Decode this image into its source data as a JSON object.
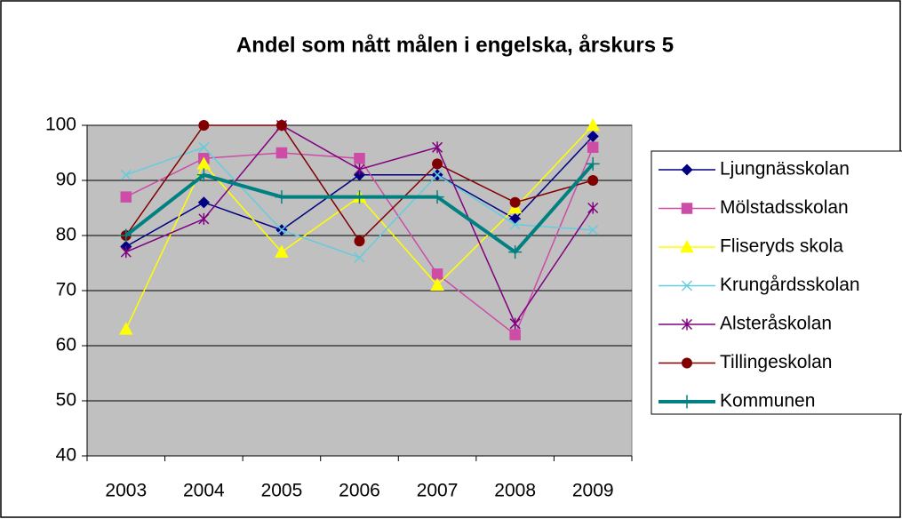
{
  "chart_data": {
    "type": "line",
    "title": "Andel som nått målen i engelska, årskurs 5",
    "categories": [
      "2003",
      "2004",
      "2005",
      "2006",
      "2007",
      "2008",
      "2009"
    ],
    "series": [
      {
        "name": "Ljungnässkolan",
        "color": "#000080",
        "marker": "diamond",
        "values": [
          78,
          86,
          81,
          91,
          91,
          83,
          98
        ]
      },
      {
        "name": "Mölstadsskolan",
        "color": "#cc4ca6",
        "marker": "square",
        "values": [
          87,
          94,
          95,
          94,
          73,
          62,
          96
        ]
      },
      {
        "name": "Fliseryds skola",
        "color": "#ffff00",
        "marker": "triangle",
        "values": [
          63,
          93,
          77,
          87,
          71,
          85,
          100
        ]
      },
      {
        "name": "Krungårdsskolan",
        "color": "#66ccdd",
        "marker": "x",
        "values": [
          91,
          96,
          81,
          76,
          91,
          82,
          81
        ]
      },
      {
        "name": "Alsteråskolan",
        "color": "#800080",
        "marker": "asterisk",
        "values": [
          77,
          83,
          100,
          92,
          96,
          64,
          85
        ]
      },
      {
        "name": "Tillingeskolan",
        "color": "#800000",
        "marker": "circle",
        "values": [
          80,
          100,
          100,
          79,
          93,
          86,
          90
        ]
      },
      {
        "name": "Kommunen",
        "color": "#008080",
        "marker": "plus",
        "width": 4,
        "values": [
          80,
          91,
          87,
          87,
          87,
          77,
          93
        ]
      }
    ],
    "ylim": [
      40,
      100
    ],
    "yticks": [
      40,
      50,
      60,
      70,
      80,
      90,
      100
    ],
    "grid": true
  }
}
